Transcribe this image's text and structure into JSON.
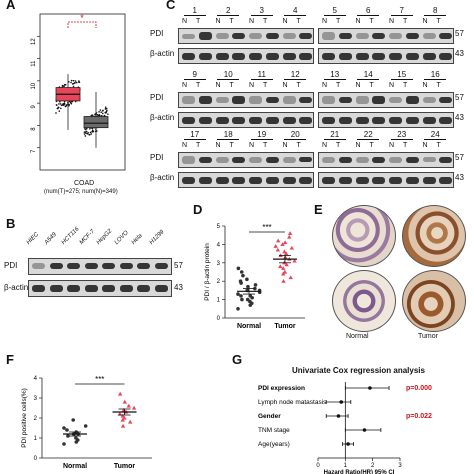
{
  "panels": {
    "A": {
      "letter": "A",
      "chart_data": {
        "type": "box",
        "categories": [
          "T",
          "N"
        ],
        "series": [
          {
            "name": "Tumor",
            "color": "#e8455a",
            "median": 9.4,
            "q1": 9.1,
            "q3": 9.7,
            "min": 7.8,
            "max": 10.3
          },
          {
            "name": "Normal",
            "color": "#6b6b6b",
            "median": 8.1,
            "q1": 7.9,
            "q3": 8.4,
            "min": 7.0,
            "max": 9.5
          }
        ],
        "ylim": [
          6,
          13
        ],
        "yticks": [
          7,
          8,
          9,
          10,
          11,
          12
        ],
        "significance": "*",
        "xlabel": "COAD",
        "xsublabel": "(num(T)=275; num(N)=349)"
      }
    },
    "C": {
      "letter": "C",
      "row_labels": [
        "PDI",
        "β-actin"
      ],
      "size_labels": [
        "57",
        "43"
      ],
      "lane_pairs": [
        [
          "1",
          "2",
          "3",
          "4"
        ],
        [
          "5",
          "6",
          "7",
          "8"
        ],
        [
          "9",
          "10",
          "11",
          "12"
        ],
        [
          "13",
          "14",
          "15",
          "16"
        ],
        [
          "17",
          "18",
          "19",
          "20"
        ],
        [
          "21",
          "22",
          "23",
          "24"
        ]
      ],
      "nt_labels": [
        "N",
        "T"
      ]
    },
    "B": {
      "letter": "B",
      "cell_lines": [
        "HIEC",
        "A549",
        "HCT116",
        "MCF-7",
        "HepG2",
        "LOVO",
        "Hela",
        "H1299"
      ],
      "row_labels": [
        "PDI",
        "β-actin"
      ],
      "size_labels": [
        "57",
        "43"
      ]
    },
    "D": {
      "letter": "D",
      "chart_data": {
        "type": "scatter",
        "categories": [
          "Normal",
          "Tumor"
        ],
        "series": [
          {
            "name": "Normal",
            "color": "#333333",
            "mean": 1.45,
            "sem": 0.15,
            "values": [
              0.5,
              0.7,
              0.8,
              0.9,
              1.0,
              1.0,
              1.1,
              1.2,
              1.2,
              1.3,
              1.4,
              1.5,
              1.5,
              1.6,
              1.7,
              1.8,
              1.9,
              2.0,
              2.1,
              2.3,
              2.5,
              2.7
            ]
          },
          {
            "name": "Tumor",
            "color": "#e8455a",
            "mean": 3.2,
            "sem": 0.2,
            "values": [
              2.0,
              2.2,
              2.4,
              2.5,
              2.7,
              2.8,
              2.9,
              3.0,
              3.1,
              3.2,
              3.3,
              3.4,
              3.5,
              3.6,
              3.7,
              3.8,
              3.9,
              4.0,
              4.1,
              4.2,
              4.4,
              4.6
            ]
          }
        ],
        "ylim": [
          0,
          5
        ],
        "yticks": [
          0,
          1,
          2,
          3,
          4,
          5
        ],
        "ylabel": "PDI / β-actin protein",
        "significance": "***"
      }
    },
    "E": {
      "letter": "E",
      "labels": [
        "Normal",
        "Tumor"
      ]
    },
    "F": {
      "letter": "F",
      "chart_data": {
        "type": "scatter",
        "categories": [
          "Normal",
          "Tumor"
        ],
        "series": [
          {
            "name": "Normal",
            "color": "#333333",
            "mean": 1.2,
            "sem": 0.1,
            "values": [
              0.7,
              0.8,
              0.9,
              1.0,
              1.1,
              1.2,
              1.2,
              1.3,
              1.4,
              1.5,
              1.6,
              1.9
            ]
          },
          {
            "name": "Tumor",
            "color": "#e8455a",
            "mean": 2.3,
            "sem": 0.15,
            "values": [
              1.6,
              1.8,
              1.9,
              2.0,
              2.1,
              2.2,
              2.3,
              2.4,
              2.5,
              2.6,
              2.8,
              3.2
            ]
          }
        ],
        "ylim": [
          0,
          4
        ],
        "yticks": [
          0,
          1,
          2,
          3,
          4
        ],
        "ylabel": "PDI positive cells(%)",
        "significance": "***"
      }
    },
    "G": {
      "letter": "G",
      "chart_data": {
        "type": "forest",
        "title": "Univariate Cox regression analysis",
        "rows": [
          {
            "label": "PDI expression",
            "hr": 1.9,
            "low": 1.0,
            "high": 2.6,
            "bold": true,
            "pval": "p=0.000"
          },
          {
            "label": "Lymph node matastasis",
            "hr": 0.85,
            "low": 0.3,
            "high": 1.2,
            "bold": false,
            "pval": ""
          },
          {
            "label": "Gender",
            "hr": 0.75,
            "low": 0.3,
            "high": 1.1,
            "bold": true,
            "pval": "p=0.022"
          },
          {
            "label": "TNM stage",
            "hr": 1.7,
            "low": 1.0,
            "high": 2.3,
            "bold": false,
            "pval": ""
          },
          {
            "label": "Age(years)",
            "hr": 1.1,
            "low": 0.9,
            "high": 1.3,
            "bold": false,
            "pval": ""
          }
        ],
        "xlim": [
          0,
          3
        ],
        "xticks": [
          0,
          1,
          2,
          3
        ],
        "xlabel": "Hazard Ratio(HR) 95% CI"
      }
    }
  }
}
